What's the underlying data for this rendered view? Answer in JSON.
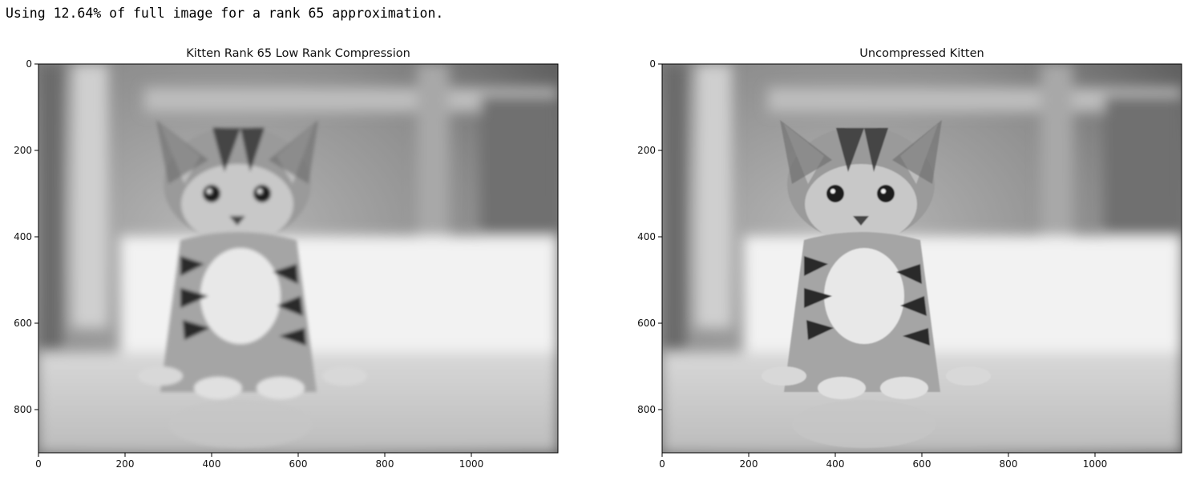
{
  "output": {
    "text": "Using 12.64% of full image for a rank 65 approximation."
  },
  "chart_data": [
    {
      "type": "image",
      "title": "Kitten Rank 65 Low Rank Compression",
      "xlim": [
        0,
        1200
      ],
      "ylim": [
        900,
        0
      ],
      "xticks": [
        0,
        200,
        400,
        600,
        800,
        1000
      ],
      "yticks": [
        0,
        200,
        400,
        600,
        800
      ],
      "colormap": "gray",
      "blur_level": 0.9
    },
    {
      "type": "image",
      "title": "Uncompressed Kitten",
      "xlim": [
        0,
        1200
      ],
      "ylim": [
        900,
        0
      ],
      "xticks": [
        0,
        200,
        400,
        600,
        800,
        1000
      ],
      "yticks": [
        0,
        200,
        400,
        600,
        800
      ],
      "colormap": "gray",
      "blur_level": 0.3
    }
  ]
}
